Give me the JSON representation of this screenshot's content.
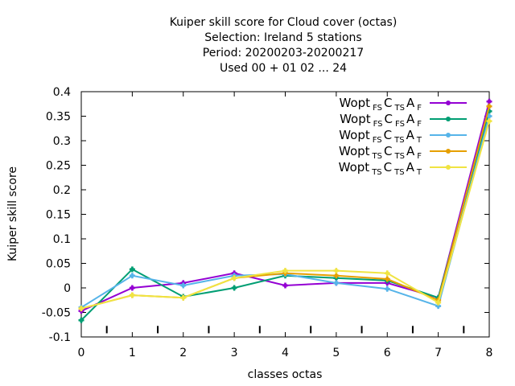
{
  "chart_data": {
    "type": "line",
    "title_lines": [
      "Kuiper skill score  for Cloud cover (octas)",
      "Selection: Ireland      5 stations",
      "Period: 20200203-20200217",
      "Used  00 + 01 02 ... 24"
    ],
    "xlabel": "classes octas",
    "ylabel": "Kuiper skill score",
    "x": [
      0,
      1,
      2,
      3,
      4,
      5,
      6,
      7,
      8
    ],
    "xlim": [
      0,
      8
    ],
    "ylim": [
      -0.1,
      0.4
    ],
    "x_ticks": [
      "0",
      "1",
      "2",
      "3",
      "4",
      "5",
      "6",
      "7",
      "8"
    ],
    "y_ticks": [
      "-0.1",
      "-0.05",
      "0",
      "0.05",
      "0.1",
      "0.15",
      "0.2",
      "0.25",
      "0.3",
      "0.35",
      "0.4"
    ],
    "grid": false,
    "legend_position": "top-right",
    "series": [
      {
        "base": "Wopt",
        "s1": "FS",
        "mid1": "C",
        "s2": "TS",
        "mid2": "A",
        "s3": "F",
        "color": "#9400d3",
        "values": [
          -0.047,
          0.0,
          0.01,
          0.03,
          0.005,
          0.01,
          0.01,
          -0.02,
          0.38
        ]
      },
      {
        "base": "Wopt",
        "s1": "FS",
        "mid1": "C",
        "s2": "FS",
        "mid2": "A",
        "s3": "F",
        "color": "#009e73",
        "values": [
          -0.066,
          0.038,
          -0.018,
          0.0,
          0.025,
          0.02,
          0.015,
          -0.02,
          0.36
        ]
      },
      {
        "base": "Wopt",
        "s1": "FS",
        "mid1": "C",
        "s2": "TS",
        "mid2": "A",
        "s3": "T",
        "color": "#56b4e9",
        "values": [
          -0.04,
          0.025,
          0.005,
          0.025,
          0.028,
          0.01,
          -0.002,
          -0.037,
          0.35
        ]
      },
      {
        "base": "Wopt",
        "s1": "TS",
        "mid1": "C",
        "s2": "TS",
        "mid2": "A",
        "s3": "F",
        "color": "#e69f00",
        "values": [
          -0.042,
          -0.015,
          -0.02,
          0.02,
          0.03,
          0.025,
          0.018,
          -0.025,
          0.37
        ]
      },
      {
        "base": "Wopt",
        "s1": "TS",
        "mid1": "C",
        "s2": "TS",
        "mid2": "A",
        "s3": "T",
        "color": "#f0e442",
        "values": [
          -0.042,
          -0.015,
          -0.02,
          0.02,
          0.035,
          0.035,
          0.03,
          -0.03,
          0.34
        ]
      }
    ]
  }
}
